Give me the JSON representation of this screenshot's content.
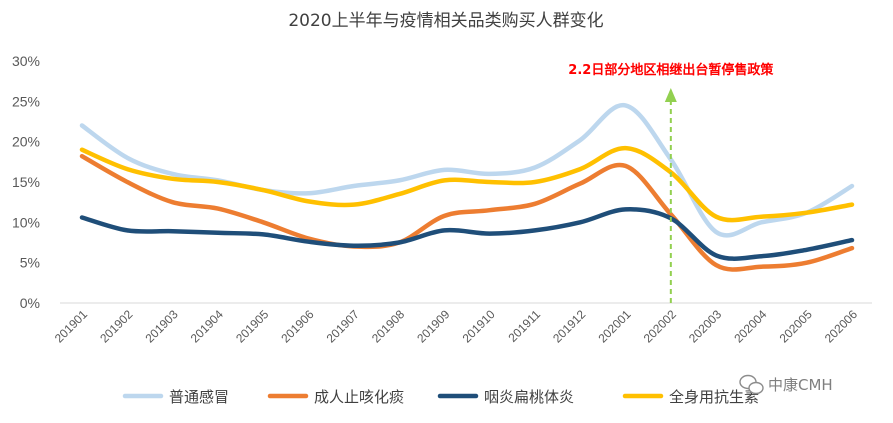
{
  "chart_data": {
    "type": "line",
    "title": "2020上半年与疫情相关品类购买人群变化",
    "xlabel": "",
    "ylabel": "",
    "x": [
      "201901",
      "201902",
      "201903",
      "201904",
      "201905",
      "201906",
      "201907",
      "201908",
      "201909",
      "201910",
      "201911",
      "201912",
      "202001",
      "202002",
      "202003",
      "202004",
      "202005",
      "202006"
    ],
    "ylim": [
      0,
      30
    ],
    "yticks": [
      "0%",
      "5%",
      "10%",
      "15%",
      "20%",
      "25%",
      "30%"
    ],
    "grid": false,
    "legend_position": "bottom",
    "series": [
      {
        "name": "普通感冒",
        "color": "#bdd7ee",
        "values": [
          22,
          18,
          16,
          15.2,
          14,
          13.6,
          14.5,
          15.2,
          16.5,
          16,
          16.8,
          20.2,
          24.5,
          17.8,
          8.8,
          10,
          11.2,
          14.5
        ]
      },
      {
        "name": "成人止咳化痰",
        "color": "#ed7d31",
        "values": [
          18.2,
          15,
          12.5,
          11.7,
          10,
          8,
          7,
          7.5,
          10.8,
          11.5,
          12.3,
          14.8,
          17,
          11,
          4.7,
          4.5,
          5,
          6.8
        ]
      },
      {
        "name": "咽炎扁桃体炎",
        "color": "#1f4e79",
        "values": [
          10.6,
          9,
          8.9,
          8.7,
          8.5,
          7.6,
          7.1,
          7.5,
          9,
          8.6,
          9,
          10,
          11.6,
          10.5,
          5.9,
          5.8,
          6.6,
          7.8
        ]
      },
      {
        "name": "全身用抗生素",
        "color": "#ffc000",
        "values": [
          19,
          16.6,
          15.4,
          15,
          14,
          12.6,
          12.2,
          13.5,
          15.2,
          15,
          15,
          16.6,
          19.2,
          16.2,
          10.7,
          10.7,
          11.2,
          12.2
        ]
      }
    ],
    "annotation": {
      "text": "2.2日部分地区相继出台暂停售政策",
      "x": "202002",
      "color": "#ff0000",
      "arrow_color": "#92d050"
    }
  },
  "watermark": {
    "text": "中康CMH",
    "icon": "wechat-icon"
  }
}
